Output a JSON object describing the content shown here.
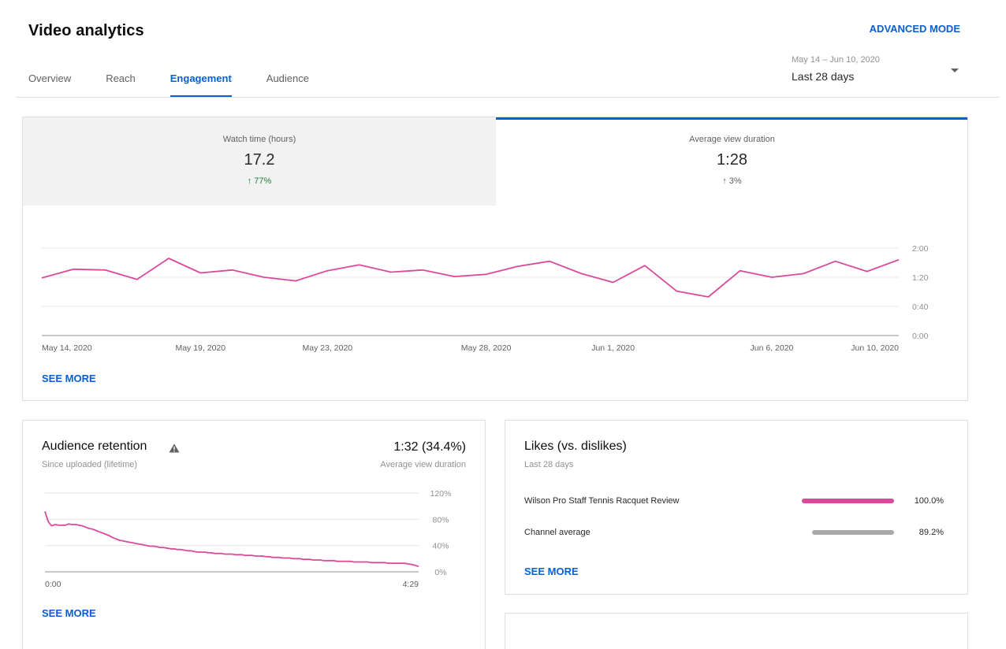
{
  "header": {
    "title": "Video analytics",
    "advanced_mode": "ADVANCED MODE"
  },
  "tabs": [
    {
      "label": "Overview",
      "active": false
    },
    {
      "label": "Reach",
      "active": false
    },
    {
      "label": "Engagement",
      "active": true
    },
    {
      "label": "Audience",
      "active": false
    }
  ],
  "date_picker": {
    "range": "May 14 – Jun 10, 2020",
    "label": "Last 28 days",
    "icon": "dropdown-caret-icon"
  },
  "metrics": [
    {
      "label": "Watch time (hours)",
      "value": "17.2",
      "delta": "77%",
      "delta_icon": "arrow-up-icon",
      "selected": false
    },
    {
      "label": "Average view duration",
      "value": "1:28",
      "delta": "3%",
      "delta_icon": "arrow-up-icon",
      "selected": true
    }
  ],
  "main_see_more": "SEE MORE",
  "colors": {
    "accent": "#065fd4",
    "line": "#d94a9b",
    "delta_up": "#188038",
    "bar_gray": "#aaaaaa"
  },
  "chart_data": [
    {
      "type": "line",
      "series": [
        {
          "values": [
            79,
            91,
            90,
            77,
            106,
            86,
            90,
            80,
            75,
            89,
            97,
            87,
            90,
            81,
            84,
            95,
            102,
            85,
            73,
            96,
            61,
            53,
            89,
            80,
            85,
            102,
            88,
            104
          ]
        }
      ],
      "x_tick_labels": [
        "May 14, 2020",
        "May 19, 2020",
        "May 23, 2020",
        "May 28, 2020",
        "Jun 1, 2020",
        "Jun 6, 2020",
        "Jun 10, 2020"
      ],
      "y_tick_labels": [
        "0:00",
        "0:40",
        "1:20",
        "2:00"
      ],
      "ylim": [
        0,
        120
      ],
      "grid": true,
      "y_axis_side": "right"
    },
    {
      "type": "line",
      "series": [
        {
          "values": [
            92,
            76,
            70,
            72,
            71,
            71,
            71,
            73,
            72,
            72,
            71,
            70,
            68,
            66,
            65,
            63,
            61,
            59,
            57,
            55,
            52,
            50,
            48,
            47,
            46,
            45,
            44,
            43,
            42,
            41,
            40,
            39,
            39,
            38,
            37,
            37,
            36,
            35,
            35,
            34,
            34,
            33,
            32,
            32,
            31,
            30,
            30,
            30,
            29,
            29,
            28,
            28,
            28,
            27,
            27,
            27,
            26,
            26,
            26,
            25,
            25,
            25,
            24,
            24,
            24,
            23,
            23,
            22,
            22,
            22,
            21,
            21,
            21,
            20,
            20,
            20,
            19,
            19,
            19,
            18,
            18,
            18,
            17,
            17,
            17,
            17,
            16,
            16,
            16,
            16,
            16,
            15,
            15,
            15,
            15,
            15,
            14,
            14,
            14,
            14,
            14,
            13,
            13,
            13,
            13,
            13,
            13,
            12,
            11,
            10,
            8
          ]
        }
      ],
      "x_tick_labels": [
        "0:00",
        "4:29"
      ],
      "y_tick_labels": [
        "0%",
        "40%",
        "80%",
        "120%"
      ],
      "ylim": [
        0,
        120
      ],
      "grid": true,
      "y_axis_side": "right"
    }
  ],
  "retention": {
    "title": "Audience retention",
    "subtitle": "Since uploaded (lifetime)",
    "value": "1:32 (34.4%)",
    "value_label": "Average view duration",
    "warning_icon": "warning-icon",
    "see_more": "SEE MORE"
  },
  "likes": {
    "title": "Likes (vs. dislikes)",
    "subtitle": "Last 28 days",
    "rows": [
      {
        "label": "Wilson Pro Staff Tennis Racquet Review",
        "percent": "100.0%",
        "fraction": 1.0,
        "color": "#d94a9b"
      },
      {
        "label": "Channel average",
        "percent": "89.2%",
        "fraction": 0.892,
        "color": "#aaaaaa"
      }
    ],
    "see_more": "SEE MORE"
  }
}
